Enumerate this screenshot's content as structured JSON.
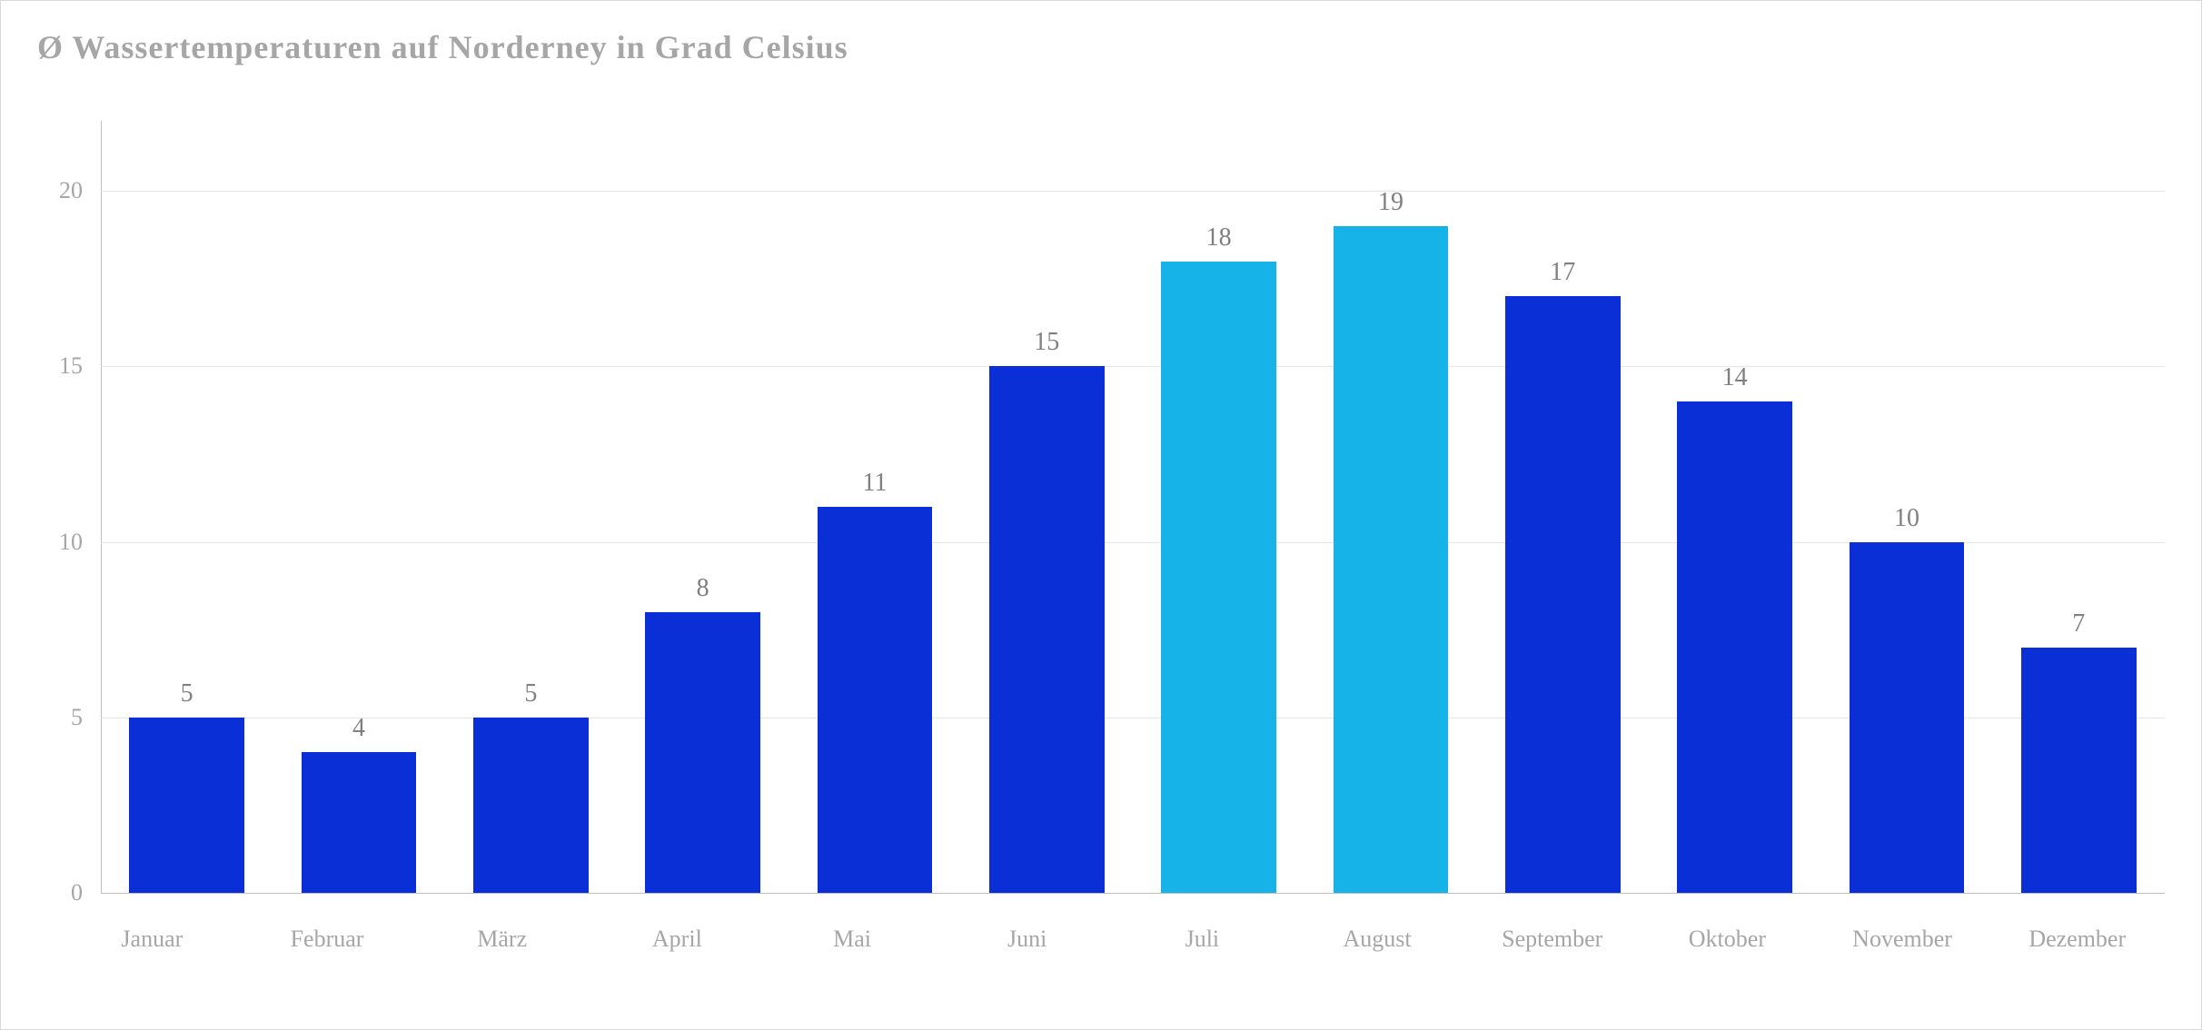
{
  "chart": {
    "type": "bar",
    "title": "Ø Wassertemperaturen auf Norderney in Grad Celsius",
    "title_fontsize": 36,
    "title_color": "#a6a6a6",
    "categories": [
      "Januar",
      "Februar",
      "März",
      "April",
      "Mai",
      "Juni",
      "Juli",
      "August",
      "September",
      "Oktober",
      "November",
      "Dezember"
    ],
    "values": [
      5,
      4,
      5,
      8,
      11,
      15,
      18,
      19,
      17,
      14,
      10,
      7
    ],
    "bar_colors": [
      "#0a2fd6",
      "#0a2fd6",
      "#0a2fd6",
      "#0a2fd6",
      "#0a2fd6",
      "#0a2fd6",
      "#15b3e8",
      "#15b3e8",
      "#0a2fd6",
      "#0a2fd6",
      "#0a2fd6",
      "#0a2fd6"
    ],
    "ylim": [
      0,
      22
    ],
    "yticks": [
      0,
      5,
      10,
      15,
      20
    ],
    "ytick_fontsize": 26,
    "axis_label_color": "#a6a6a6",
    "xlabel_fontsize": 26,
    "data_label_fontsize": 28,
    "data_label_color": "#808080",
    "background_color": "#ffffff",
    "grid_color": "#e6e6e6",
    "border_color": "#d9d9d9",
    "bar_width": 0.67
  }
}
